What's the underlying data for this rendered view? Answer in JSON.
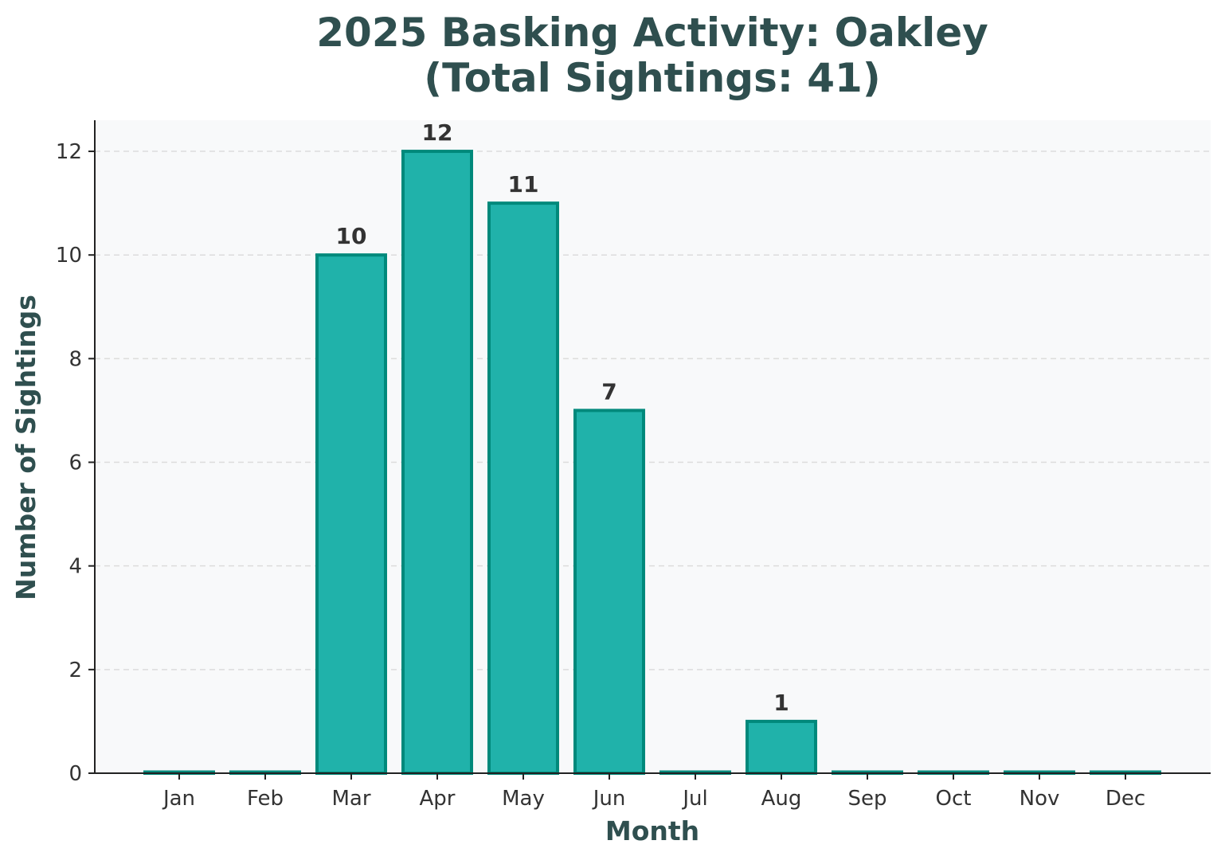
{
  "chart_data": {
    "type": "bar",
    "title_lines": [
      "2025 Basking Activity: Oakley",
      "(Total Sightings: 41)"
    ],
    "xlabel": "Month",
    "ylabel": "Number of Sightings",
    "categories": [
      "Jan",
      "Feb",
      "Mar",
      "Apr",
      "May",
      "Jun",
      "Jul",
      "Aug",
      "Sep",
      "Oct",
      "Nov",
      "Dec"
    ],
    "values": [
      0,
      0,
      10,
      12,
      11,
      7,
      0,
      1,
      0,
      0,
      0,
      0
    ],
    "data_labels": [
      "",
      "",
      "10",
      "12",
      "11",
      "7",
      "",
      "1",
      "",
      "",
      "",
      ""
    ],
    "ylim": [
      0,
      12.6
    ],
    "yticks": [
      0,
      2,
      4,
      6,
      8,
      10,
      12
    ],
    "grid": "y-dashed",
    "legend": "none",
    "colors": {
      "bar_fill": "#20b2aa",
      "bar_edge": "#00897b",
      "plot_bg": "#f8f9fa",
      "text": "#2f4f4f"
    }
  }
}
